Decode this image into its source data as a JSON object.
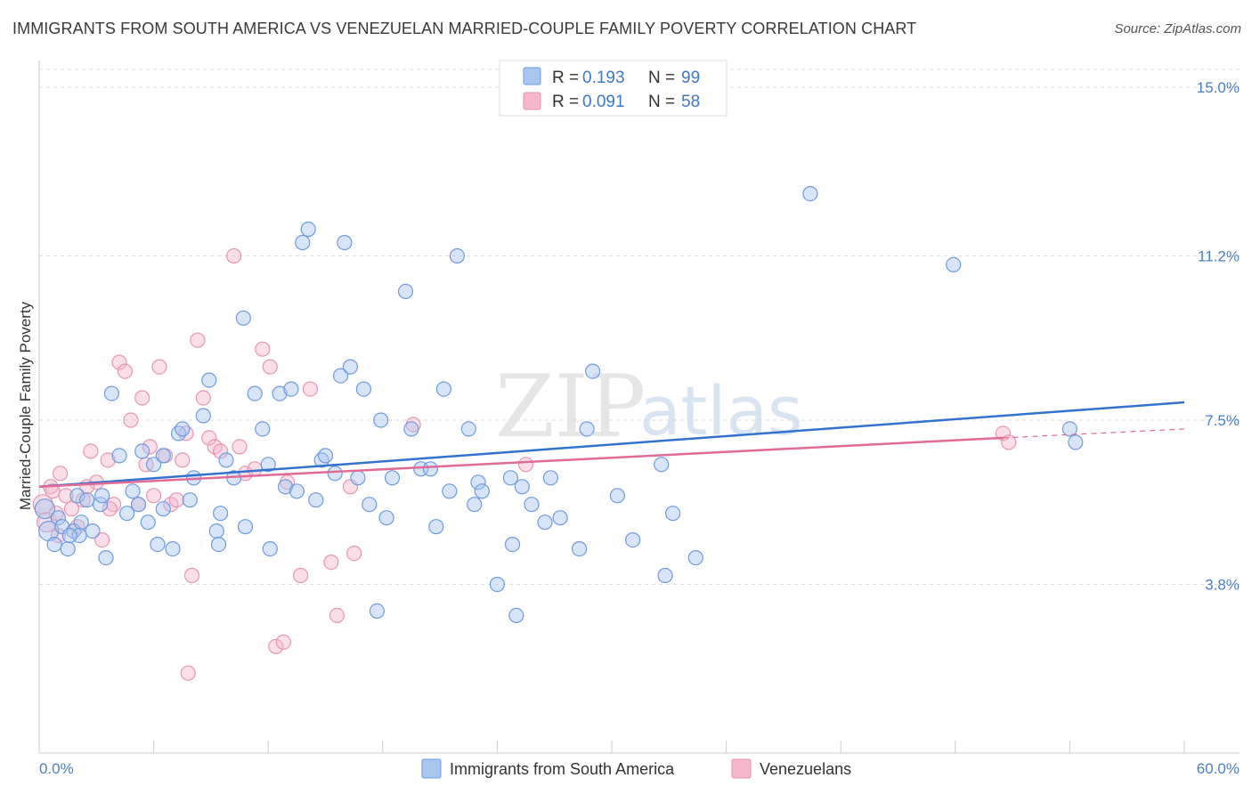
{
  "header": {
    "title": "IMMIGRANTS FROM SOUTH AMERICA VS VENEZUELAN MARRIED-COUPLE FAMILY POVERTY CORRELATION CHART",
    "source": "Source: ZipAtlas.com"
  },
  "watermark": {
    "zip": "ZIP",
    "atlas": "atlas"
  },
  "legend": {
    "blue": {
      "r_label": "R =",
      "r_value": "0.193",
      "n_label": "N =",
      "n_value": "99"
    },
    "pink": {
      "r_label": "R =",
      "r_value": "0.091",
      "n_label": "N =",
      "n_value": "58"
    }
  },
  "bottom_legend": {
    "blue_label": "Immigrants from South America",
    "pink_label": "Venezuelans"
  },
  "colors": {
    "blue_fill": "#a9c6ef",
    "blue_stroke": "#6d9be0",
    "blue_line": "#3472d1",
    "pink_fill": "#f5b7cb",
    "pink_stroke": "#e895b2",
    "pink_line": "#e06b97",
    "tick_text": "#4a7fc8",
    "grid": "#dddddd"
  },
  "chart_data": {
    "type": "scatter",
    "title": "IMMIGRANTS FROM SOUTH AMERICA VS VENEZUELAN MARRIED-COUPLE FAMILY POVERTY CORRELATION CHART",
    "xlabel": "",
    "ylabel": "Married-Couple Family Poverty",
    "xlim": [
      0,
      60
    ],
    "ylim": [
      0,
      15.4
    ],
    "x_tick_labels": [
      "0.0%",
      "60.0%"
    ],
    "y_ticks": [
      3.8,
      7.5,
      11.2,
      15.0
    ],
    "y_tick_labels": [
      "3.8%",
      "7.5%",
      "11.2%",
      "15.0%"
    ],
    "series": [
      {
        "name": "Immigrants from South America",
        "color": "blue",
        "r": 0.193,
        "n": 99,
        "trend": {
          "x0": 0,
          "y0": 6.0,
          "x1": 60,
          "y1": 7.9
        },
        "points": [
          [
            0.3,
            5.5
          ],
          [
            0.5,
            5.0
          ],
          [
            0.8,
            4.7
          ],
          [
            1.0,
            5.3
          ],
          [
            1.2,
            5.1
          ],
          [
            1.5,
            4.6
          ],
          [
            1.8,
            5.0
          ],
          [
            2.0,
            5.8
          ],
          [
            2.2,
            5.2
          ],
          [
            2.5,
            5.7
          ],
          [
            2.8,
            5.0
          ],
          [
            3.2,
            5.6
          ],
          [
            3.5,
            4.4
          ],
          [
            3.8,
            8.1
          ],
          [
            4.2,
            6.7
          ],
          [
            4.6,
            5.4
          ],
          [
            4.9,
            5.9
          ],
          [
            5.2,
            5.6
          ],
          [
            5.4,
            6.8
          ],
          [
            5.7,
            5.2
          ],
          [
            6.0,
            6.5
          ],
          [
            6.2,
            4.7
          ],
          [
            6.5,
            6.7
          ],
          [
            7.0,
            4.6
          ],
          [
            7.3,
            7.2
          ],
          [
            7.5,
            7.3
          ],
          [
            7.9,
            5.7
          ],
          [
            8.1,
            6.2
          ],
          [
            8.6,
            7.6
          ],
          [
            8.9,
            8.4
          ],
          [
            9.3,
            5.0
          ],
          [
            9.5,
            5.4
          ],
          [
            9.8,
            6.6
          ],
          [
            10.2,
            6.2
          ],
          [
            10.7,
            9.8
          ],
          [
            10.8,
            5.1
          ],
          [
            11.3,
            8.1
          ],
          [
            11.7,
            7.3
          ],
          [
            12.0,
            6.5
          ],
          [
            12.6,
            8.1
          ],
          [
            12.9,
            6.0
          ],
          [
            13.2,
            8.2
          ],
          [
            13.5,
            5.9
          ],
          [
            13.8,
            11.5
          ],
          [
            14.1,
            11.8
          ],
          [
            14.5,
            5.7
          ],
          [
            14.8,
            6.6
          ],
          [
            15.0,
            6.7
          ],
          [
            15.5,
            6.3
          ],
          [
            15.8,
            8.5
          ],
          [
            16.0,
            11.5
          ],
          [
            16.3,
            8.7
          ],
          [
            16.7,
            6.2
          ],
          [
            17.0,
            8.2
          ],
          [
            17.3,
            5.6
          ],
          [
            17.7,
            3.2
          ],
          [
            17.9,
            7.5
          ],
          [
            18.2,
            5.3
          ],
          [
            18.5,
            6.2
          ],
          [
            19.2,
            10.4
          ],
          [
            19.5,
            7.3
          ],
          [
            20.0,
            6.4
          ],
          [
            20.5,
            6.4
          ],
          [
            20.8,
            5.1
          ],
          [
            21.2,
            8.2
          ],
          [
            21.5,
            5.9
          ],
          [
            21.9,
            11.2
          ],
          [
            22.5,
            7.3
          ],
          [
            22.8,
            5.6
          ],
          [
            23.0,
            6.1
          ],
          [
            23.2,
            5.9
          ],
          [
            24.0,
            3.8
          ],
          [
            24.7,
            6.2
          ],
          [
            24.8,
            4.7
          ],
          [
            25.0,
            3.1
          ],
          [
            25.3,
            6.0
          ],
          [
            25.8,
            5.6
          ],
          [
            26.5,
            5.2
          ],
          [
            26.8,
            6.2
          ],
          [
            27.3,
            5.3
          ],
          [
            28.3,
            4.6
          ],
          [
            28.7,
            7.3
          ],
          [
            29.0,
            8.6
          ],
          [
            30.3,
            5.8
          ],
          [
            31.1,
            4.8
          ],
          [
            32.6,
            6.5
          ],
          [
            32.8,
            4.0
          ],
          [
            33.2,
            5.4
          ],
          [
            34.4,
            4.4
          ],
          [
            40.4,
            12.6
          ],
          [
            47.9,
            11.0
          ],
          [
            54.0,
            7.3
          ],
          [
            54.3,
            7.0
          ],
          [
            9.4,
            4.7
          ],
          [
            3.3,
            5.8
          ],
          [
            2.1,
            4.9
          ],
          [
            12.1,
            4.6
          ],
          [
            1.6,
            4.9
          ],
          [
            6.5,
            5.5
          ]
        ]
      },
      {
        "name": "Venezuelans",
        "color": "pink",
        "r": 0.091,
        "n": 58,
        "trend": {
          "x0": 0,
          "y0": 6.0,
          "x1": 50.5,
          "y1": 7.1
        },
        "trend_dashed": {
          "x0": 50.5,
          "y0": 7.1,
          "x1": 60,
          "y1": 7.3
        },
        "points": [
          [
            0.2,
            5.6
          ],
          [
            0.4,
            5.2
          ],
          [
            0.6,
            6.0
          ],
          [
            0.9,
            5.4
          ],
          [
            1.1,
            6.3
          ],
          [
            1.4,
            5.8
          ],
          [
            1.7,
            5.5
          ],
          [
            2.0,
            5.1
          ],
          [
            2.3,
            5.7
          ],
          [
            2.7,
            6.8
          ],
          [
            3.0,
            6.1
          ],
          [
            3.3,
            4.8
          ],
          [
            3.6,
            6.6
          ],
          [
            3.9,
            5.6
          ],
          [
            4.2,
            8.8
          ],
          [
            4.5,
            8.6
          ],
          [
            4.8,
            7.5
          ],
          [
            5.2,
            5.6
          ],
          [
            5.4,
            8.0
          ],
          [
            5.6,
            6.5
          ],
          [
            5.8,
            6.9
          ],
          [
            6.0,
            5.8
          ],
          [
            6.3,
            8.7
          ],
          [
            6.6,
            6.7
          ],
          [
            6.9,
            5.6
          ],
          [
            7.2,
            5.7
          ],
          [
            7.5,
            6.6
          ],
          [
            7.7,
            7.2
          ],
          [
            8.0,
            4.0
          ],
          [
            8.3,
            9.3
          ],
          [
            8.6,
            8.0
          ],
          [
            8.9,
            7.1
          ],
          [
            9.2,
            6.9
          ],
          [
            9.5,
            6.8
          ],
          [
            10.2,
            11.2
          ],
          [
            10.5,
            6.9
          ],
          [
            10.8,
            6.3
          ],
          [
            11.3,
            6.4
          ],
          [
            11.7,
            9.1
          ],
          [
            12.1,
            8.7
          ],
          [
            12.4,
            2.4
          ],
          [
            12.8,
            2.5
          ],
          [
            13.0,
            6.1
          ],
          [
            13.7,
            4.0
          ],
          [
            14.2,
            8.2
          ],
          [
            15.3,
            4.3
          ],
          [
            15.6,
            3.1
          ],
          [
            16.3,
            6.0
          ],
          [
            16.5,
            4.5
          ],
          [
            19.6,
            7.4
          ],
          [
            25.5,
            6.5
          ],
          [
            50.5,
            7.2
          ],
          [
            50.8,
            7.0
          ],
          [
            7.8,
            1.8
          ],
          [
            2.5,
            6.0
          ],
          [
            1.0,
            4.9
          ],
          [
            3.7,
            5.5
          ],
          [
            0.7,
            5.9
          ]
        ]
      }
    ]
  }
}
